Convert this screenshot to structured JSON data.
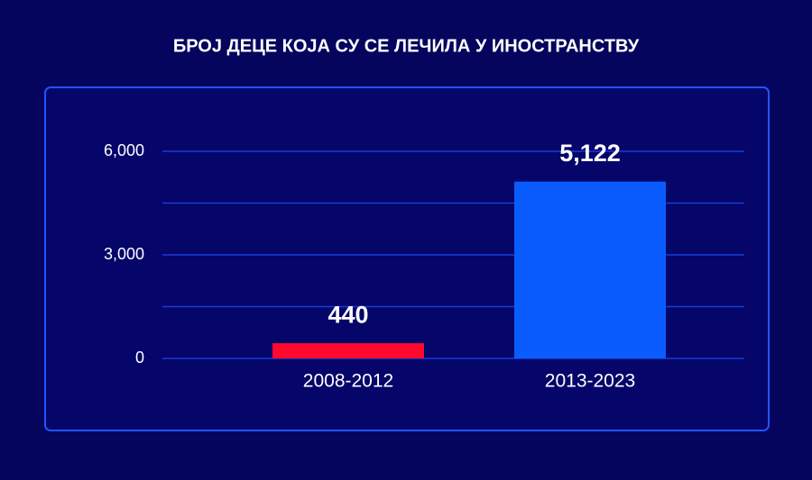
{
  "chart_data": {
    "type": "bar",
    "title": "БРОЈ ДЕЦЕ КОЈА СУ СЕ ЛЕЧИЛА У ИНОСТРАНСТВУ",
    "categories": [
      "2008-2012",
      "2013-2023"
    ],
    "values": [
      440,
      5122
    ],
    "value_labels": [
      "440",
      "5,122"
    ],
    "colors": [
      "#ff0a2e",
      "#0a5cff"
    ],
    "ylim": [
      0,
      6000
    ],
    "yticks": [
      0,
      {
        "value": 3000,
        "label": "3,000"
      },
      {
        "value": 6000,
        "label": "6,000"
      }
    ],
    "minor_yticks": [
      1500,
      4500
    ],
    "grid": true
  }
}
